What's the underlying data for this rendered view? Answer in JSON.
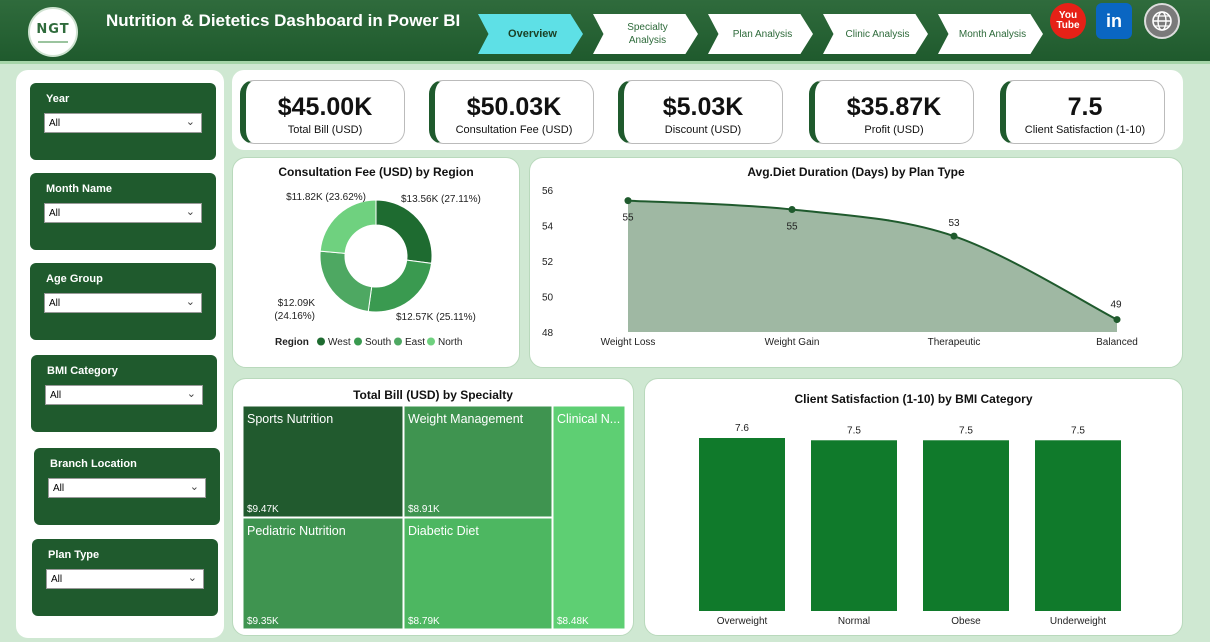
{
  "header": {
    "logo_text": "NGT",
    "title": "Nutrition & Dietetics Dashboard in Power BI",
    "tabs": [
      {
        "label": "Overview"
      },
      {
        "label": "Specialty Analysis"
      },
      {
        "label": "Plan Analysis"
      },
      {
        "label": "Clinic Analysis"
      },
      {
        "label": "Month Analysis"
      }
    ],
    "social": {
      "youtube": "You Tube",
      "linkedin": "in",
      "web": "globe-icon"
    }
  },
  "filters": [
    {
      "label": "Year",
      "value": "All"
    },
    {
      "label": "Month Name",
      "value": "All"
    },
    {
      "label": "Age Group",
      "value": "All"
    },
    {
      "label": "BMI Category",
      "value": "All"
    },
    {
      "label": "Branch Location",
      "value": "All"
    },
    {
      "label": "Plan Type",
      "value": "All"
    }
  ],
  "kpis": [
    {
      "value": "$45.00K",
      "label": "Total Bill (USD)"
    },
    {
      "value": "$50.03K",
      "label": "Consultation Fee (USD)"
    },
    {
      "value": "$5.03K",
      "label": "Discount (USD)"
    },
    {
      "value": "$35.87K",
      "label": "Profit (USD)"
    },
    {
      "value": "7.5",
      "label": "Client Satisfaction (1-10)"
    }
  ],
  "colors": {
    "dark_green": "#1f5a2d",
    "west": "#1e6b30",
    "south": "#3a9a50",
    "east": "#4ea862",
    "north": "#6fd17f"
  },
  "chart_data": [
    {
      "type": "pie",
      "title": "Consultation Fee (USD) by Region",
      "legend_title": "Region",
      "legend_placement": "bottom",
      "categories": [
        "West",
        "South",
        "East",
        "North"
      ],
      "values": [
        13.56,
        12.57,
        12.09,
        11.82
      ],
      "labels": [
        "$13.56K (27.11%)",
        "$12.57K (25.11%)",
        "$12.09K (24.16%)",
        "$11.82K (23.62%)"
      ]
    },
    {
      "type": "area",
      "title": "Avg.Diet Duration (Days) by Plan Type",
      "categories": [
        "Weight Loss",
        "Weight Gain",
        "Therapeutic",
        "Balanced"
      ],
      "values": [
        55.4,
        54.9,
        53.4,
        48.7
      ],
      "data_labels": [
        "55",
        "55",
        "53",
        "49"
      ],
      "yticks": [
        "48",
        "50",
        "52",
        "54",
        "56"
      ],
      "ylim": [
        48,
        56
      ]
    },
    {
      "type": "heatmap",
      "title": "Total Bill (USD) by Specialty",
      "tiles": [
        {
          "name": "Sports Nutrition",
          "value": "$9.47K"
        },
        {
          "name": "Weight Management",
          "value": "$8.91K"
        },
        {
          "name": "Clinical N...",
          "value": "$8.48K"
        },
        {
          "name": "Pediatric Nutrition",
          "value": "$9.35K"
        },
        {
          "name": "Diabetic Diet",
          "value": "$8.79K"
        }
      ]
    },
    {
      "type": "bar",
      "title": "Client Satisfaction (1-10) by BMI Category",
      "categories": [
        "Overweight",
        "Normal",
        "Obese",
        "Underweight"
      ],
      "values": [
        7.6,
        7.5,
        7.5,
        7.5
      ],
      "data_labels": [
        "7.6",
        "7.5",
        "7.5",
        "7.5"
      ]
    }
  ]
}
